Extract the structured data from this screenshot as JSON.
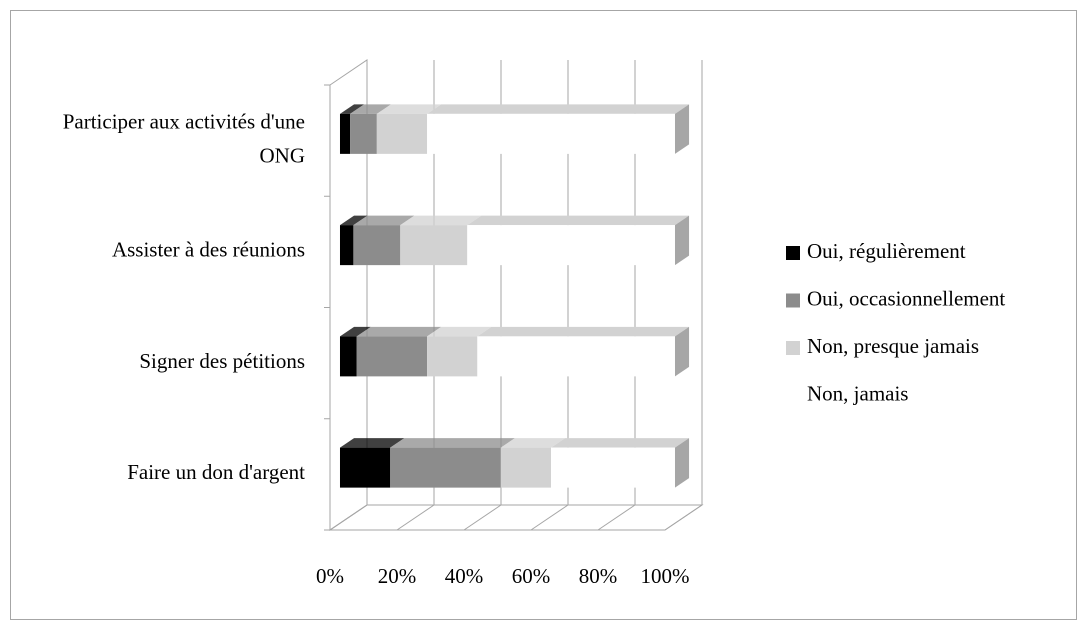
{
  "chart_data": {
    "type": "bar3d_stacked_horizontal",
    "categories": [
      "Participer aux activités d'une ONG",
      "Assister à des réunions",
      "Signer des pétitions",
      "Faire un don d'argent"
    ],
    "series": [
      {
        "name": "Oui, régulièrement",
        "color": "#000000",
        "values": [
          3,
          4,
          5,
          15
        ]
      },
      {
        "name": "Oui, occasionnellement",
        "color": "#8c8c8c",
        "values": [
          8,
          14,
          21,
          33
        ]
      },
      {
        "name": "Non, presque jamais",
        "color": "#d2d2d2",
        "values": [
          15,
          20,
          15,
          15
        ]
      },
      {
        "name": "Non, jamais",
        "color": "#ffffff",
        "values": [
          74,
          62,
          59,
          37
        ]
      }
    ],
    "xlim": [
      0,
      100
    ],
    "xticks": [
      {
        "value": 0,
        "label": "0%"
      },
      {
        "value": 20,
        "label": "20%"
      },
      {
        "value": 40,
        "label": "40%"
      },
      {
        "value": 60,
        "label": "60%"
      },
      {
        "value": 80,
        "label": "80%"
      },
      {
        "value": 100,
        "label": "100%"
      }
    ],
    "grid": true,
    "legend": "right"
  }
}
